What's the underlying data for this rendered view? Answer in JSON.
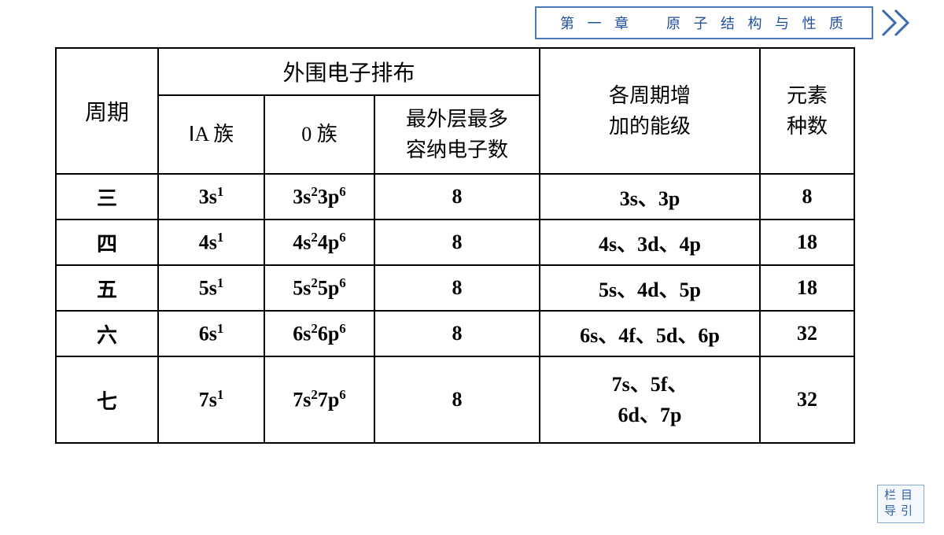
{
  "header": {
    "chapter": "第 一 章",
    "title": "原 子 结 构 与 性 质"
  },
  "table": {
    "columns": {
      "period": "周期",
      "outer_config": "外围电子排布",
      "ia_group": "ⅠA 族",
      "zero_group": "0 族",
      "max_outer": "最外层最多\n容纳电子数",
      "added_levels": "各周期增\n加的能级",
      "element_count": "元素\n种数"
    },
    "rows": [
      {
        "period": "三",
        "ia": "3s¹",
        "zero": "3s²3p⁶",
        "max": "8",
        "levels": "3s、3p",
        "count": "8"
      },
      {
        "period": "四",
        "ia": "4s¹",
        "zero": "4s²4p⁶",
        "max": "8",
        "levels": "4s、3d、4p",
        "count": "18"
      },
      {
        "period": "五",
        "ia": "5s¹",
        "zero": "5s²5p⁶",
        "max": "8",
        "levels": "5s、4d、5p",
        "count": "18"
      },
      {
        "period": "六",
        "ia": "6s¹",
        "zero": "6s²6p⁶",
        "max": "8",
        "levels": "6s、4f、5d、6p",
        "count": "32"
      },
      {
        "period": "七",
        "ia": "7s¹",
        "zero": "7s²7p⁶",
        "max": "8",
        "levels": "7s、5f、\n6d、7p",
        "count": "32"
      }
    ]
  },
  "footer": {
    "line1": "栏目",
    "line2": "导引"
  },
  "colors": {
    "border_blue": "#4a7ab8",
    "text_blue": "#2050a0",
    "arrow_blue": "#3a6ab0",
    "table_border": "#000000"
  }
}
